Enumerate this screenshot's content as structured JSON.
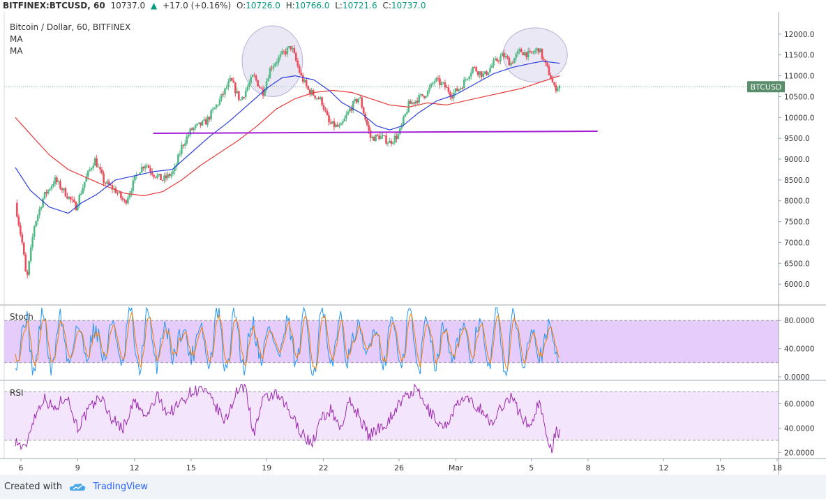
{
  "header": {
    "symbol": "BITFINEX:BTCUSD, 60",
    "last": "10737.0",
    "arrow": "▲",
    "change": "+17.0 (+0.16%)",
    "o_label": "O:",
    "o_value": "10726.0",
    "h_label": "H:",
    "h_value": "10766.0",
    "l_label": "L:",
    "l_value": "10721.6",
    "c_label": "C:",
    "c_value": "10737.0"
  },
  "footer": {
    "created_with": "Created with",
    "brand": "TradingView",
    "logo_icon": "tradingview-cloud-icon"
  },
  "colors": {
    "up_candle": "#53b987",
    "down_candle": "#eb4d5c",
    "ma_fast": "#2a3fdb",
    "ma_slow": "#e83a3a",
    "support_line": "#a21fd6",
    "stoch_k": "#2196f3",
    "stoch_d": "#f57c00",
    "rsi": "#9c27b0",
    "stoch_band": "#e6ccfa",
    "rsi_band": "#f3e5fb",
    "price_tag": "#5a8d6b"
  },
  "chart_data": [
    {
      "type": "candlestick",
      "title": "Bitcoin / Dollar, 60, BITFINEX",
      "legend": [
        "MA",
        "MA"
      ],
      "price_tag": "BTCUSD",
      "last_price": 10737.0,
      "x_ticks": [
        {
          "label": "6",
          "day": 0
        },
        {
          "label": "9",
          "day": 3
        },
        {
          "label": "12",
          "day": 6
        },
        {
          "label": "15",
          "day": 9
        },
        {
          "label": "19",
          "day": 13
        },
        {
          "label": "22",
          "day": 16
        },
        {
          "label": "26",
          "day": 20
        },
        {
          "label": "Mar",
          "day": 23
        },
        {
          "label": "5",
          "day": 27
        },
        {
          "label": "8",
          "day": 30
        },
        {
          "label": "12",
          "day": 34
        },
        {
          "label": "15",
          "day": 37
        },
        {
          "label": "18",
          "day": 40
        }
      ],
      "y_ticks": [
        "12000.0",
        "11500.0",
        "11000.0",
        "10500.0",
        "10000.0",
        "9500.0",
        "9000.0",
        "8500.0",
        "8000.0",
        "7500.0",
        "7000.0",
        "6500.0",
        "6000.0"
      ],
      "ylim": [
        5500,
        12500
      ],
      "close_path": [
        [
          -0.3,
          7950
        ],
        [
          0.1,
          6900
        ],
        [
          0.3,
          6050
        ],
        [
          0.7,
          7400
        ],
        [
          1.2,
          8100
        ],
        [
          1.8,
          8500
        ],
        [
          2.5,
          8100
        ],
        [
          2.9,
          7850
        ],
        [
          3.4,
          8500
        ],
        [
          3.9,
          9000
        ],
        [
          4.4,
          8450
        ],
        [
          5.0,
          8250
        ],
        [
          5.5,
          7950
        ],
        [
          6.2,
          8700
        ],
        [
          6.6,
          8900
        ],
        [
          7.0,
          8650
        ],
        [
          7.5,
          8500
        ],
        [
          8.1,
          8700
        ],
        [
          8.5,
          9300
        ],
        [
          9.0,
          9700
        ],
        [
          9.8,
          9900
        ],
        [
          10.5,
          10400
        ],
        [
          11.1,
          10900
        ],
        [
          11.6,
          10400
        ],
        [
          12.3,
          11000
        ],
        [
          12.8,
          10600
        ],
        [
          13.2,
          11200
        ],
        [
          13.8,
          11500
        ],
        [
          14.3,
          11700
        ],
        [
          14.8,
          11000
        ],
        [
          15.2,
          10650
        ],
        [
          15.9,
          10400
        ],
        [
          16.3,
          9850
        ],
        [
          16.9,
          9750
        ],
        [
          17.4,
          10200
        ],
        [
          17.9,
          10500
        ],
        [
          18.5,
          9500
        ],
        [
          19.0,
          9550
        ],
        [
          19.5,
          9400
        ],
        [
          20.0,
          9600
        ],
        [
          20.5,
          10300
        ],
        [
          21.0,
          10450
        ],
        [
          21.5,
          10600
        ],
        [
          21.9,
          10900
        ],
        [
          22.4,
          10750
        ],
        [
          22.8,
          10550
        ],
        [
          23.3,
          10750
        ],
        [
          23.9,
          11200
        ],
        [
          24.5,
          11000
        ],
        [
          25.0,
          11300
        ],
        [
          25.5,
          11500
        ],
        [
          25.9,
          11300
        ],
        [
          26.4,
          11600
        ],
        [
          26.9,
          11500
        ],
        [
          27.4,
          11650
        ],
        [
          27.7,
          11300
        ],
        [
          28.0,
          11000
        ],
        [
          28.2,
          10700
        ],
        [
          28.5,
          10760
        ]
      ],
      "ma_fast_path": [
        [
          -0.3,
          8800
        ],
        [
          0.5,
          8250
        ],
        [
          1.5,
          7850
        ],
        [
          2.5,
          7700
        ],
        [
          3.2,
          7950
        ],
        [
          4.0,
          8150
        ],
        [
          5.0,
          8500
        ],
        [
          6.0,
          8600
        ],
        [
          7.0,
          8700
        ],
        [
          8.0,
          8750
        ],
        [
          9.0,
          9150
        ],
        [
          10.0,
          9550
        ],
        [
          11.0,
          9900
        ],
        [
          12.0,
          10300
        ],
        [
          13.0,
          10700
        ],
        [
          13.8,
          10950
        ],
        [
          14.5,
          11000
        ],
        [
          15.5,
          10900
        ],
        [
          16.3,
          10650
        ],
        [
          17.0,
          10350
        ],
        [
          18.0,
          10100
        ],
        [
          18.8,
          9800
        ],
        [
          19.5,
          9700
        ],
        [
          20.2,
          9800
        ],
        [
          21.0,
          10100
        ],
        [
          22.0,
          10400
        ],
        [
          23.0,
          10550
        ],
        [
          24.0,
          10800
        ],
        [
          25.0,
          11050
        ],
        [
          26.0,
          11200
        ],
        [
          27.0,
          11300
        ],
        [
          27.6,
          11350
        ],
        [
          28.5,
          11300
        ]
      ],
      "ma_slow_path": [
        [
          -0.3,
          10000
        ],
        [
          0.5,
          9600
        ],
        [
          1.5,
          9100
        ],
        [
          2.5,
          8750
        ],
        [
          3.5,
          8550
        ],
        [
          4.5,
          8350
        ],
        [
          5.5,
          8180
        ],
        [
          6.5,
          8120
        ],
        [
          7.5,
          8220
        ],
        [
          8.5,
          8500
        ],
        [
          9.5,
          8850
        ],
        [
          10.5,
          9150
        ],
        [
          11.5,
          9450
        ],
        [
          12.5,
          9800
        ],
        [
          13.5,
          10200
        ],
        [
          14.5,
          10450
        ],
        [
          15.5,
          10600
        ],
        [
          16.5,
          10650
        ],
        [
          17.5,
          10600
        ],
        [
          18.5,
          10450
        ],
        [
          19.5,
          10300
        ],
        [
          20.5,
          10250
        ],
        [
          21.5,
          10350
        ],
        [
          22.5,
          10300
        ],
        [
          23.5,
          10400
        ],
        [
          24.5,
          10500
        ],
        [
          25.5,
          10600
        ],
        [
          26.5,
          10700
        ],
        [
          27.5,
          10850
        ],
        [
          28.5,
          11000
        ]
      ],
      "support_line": [
        [
          7.0,
          9620
        ],
        [
          30.5,
          9670
        ]
      ],
      "ellipses": [
        {
          "cx": 13.3,
          "cy": 11350,
          "rx": 1.6,
          "ry": 850
        },
        {
          "cx": 27.2,
          "cy": 11500,
          "rx": 1.7,
          "ry": 650
        }
      ]
    },
    {
      "type": "line",
      "title": "Stoch",
      "y_ticks": [
        "80.0000",
        "40.0000",
        "0.0000"
      ],
      "ylim": [
        -5,
        100
      ],
      "band": [
        20,
        80
      ]
    },
    {
      "type": "line",
      "title": "RSI",
      "y_ticks": [
        "60.0000",
        "40.0000",
        "20.0000"
      ],
      "ylim": [
        15,
        78
      ],
      "band": [
        30,
        70
      ],
      "path": [
        [
          -0.3,
          30
        ],
        [
          0.2,
          22
        ],
        [
          0.6,
          45
        ],
        [
          1.2,
          65
        ],
        [
          1.8,
          55
        ],
        [
          2.4,
          68
        ],
        [
          3.0,
          40
        ],
        [
          3.6,
          55
        ],
        [
          4.2,
          66
        ],
        [
          4.8,
          48
        ],
        [
          5.4,
          40
        ],
        [
          6.0,
          62
        ],
        [
          6.6,
          48
        ],
        [
          7.2,
          66
        ],
        [
          7.8,
          52
        ],
        [
          8.4,
          60
        ],
        [
          9.0,
          70
        ],
        [
          9.6,
          72
        ],
        [
          10.2,
          60
        ],
        [
          10.8,
          45
        ],
        [
          11.4,
          70
        ],
        [
          11.9,
          74
        ],
        [
          12.3,
          35
        ],
        [
          12.8,
          62
        ],
        [
          13.4,
          68
        ],
        [
          14.0,
          58
        ],
        [
          14.5,
          45
        ],
        [
          14.9,
          35
        ],
        [
          15.4,
          27
        ],
        [
          15.9,
          48
        ],
        [
          16.4,
          55
        ],
        [
          16.9,
          40
        ],
        [
          17.4,
          62
        ],
        [
          17.9,
          50
        ],
        [
          18.4,
          33
        ],
        [
          18.9,
          40
        ],
        [
          19.4,
          45
        ],
        [
          19.9,
          58
        ],
        [
          20.4,
          66
        ],
        [
          20.9,
          72
        ],
        [
          21.4,
          58
        ],
        [
          21.9,
          48
        ],
        [
          22.4,
          40
        ],
        [
          22.9,
          55
        ],
        [
          23.4,
          64
        ],
        [
          23.9,
          60
        ],
        [
          24.4,
          55
        ],
        [
          24.9,
          42
        ],
        [
          25.4,
          58
        ],
        [
          25.9,
          66
        ],
        [
          26.4,
          52
        ],
        [
          26.9,
          40
        ],
        [
          27.4,
          62
        ],
        [
          27.8,
          35
        ],
        [
          28.1,
          23
        ],
        [
          28.3,
          40
        ],
        [
          28.5,
          34
        ]
      ]
    }
  ]
}
